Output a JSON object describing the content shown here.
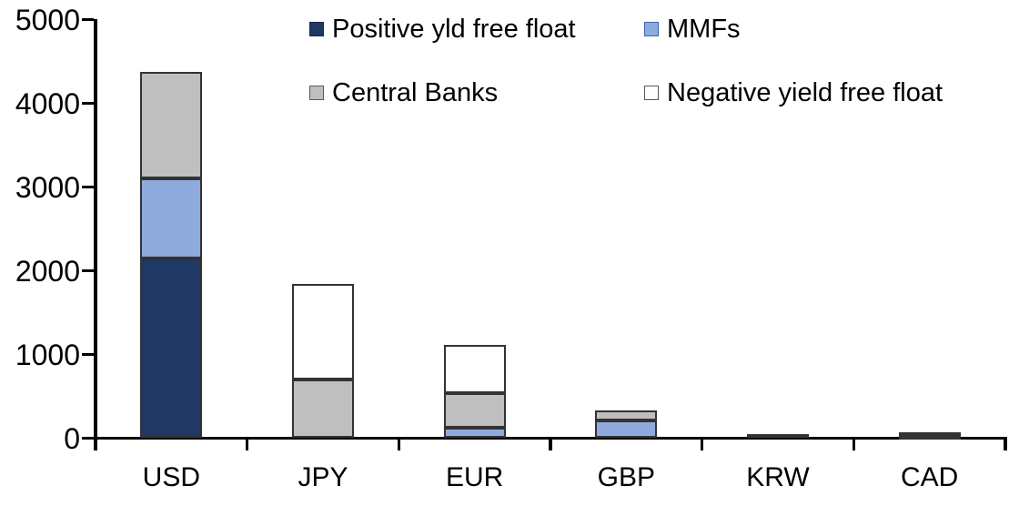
{
  "chart_data": {
    "type": "bar",
    "stacked": true,
    "title": "",
    "categories": [
      "USD",
      "JPY",
      "EUR",
      "GBP",
      "KRW",
      "CAD"
    ],
    "series": [
      {
        "name": "Positive yld free float",
        "color": "#1F3864",
        "swatch_border": "#17294F",
        "values": [
          2150,
          0,
          0,
          0,
          50,
          30
        ]
      },
      {
        "name": "MMFs",
        "color": "#8FAADC",
        "swatch_border": "#3A66A9",
        "values": [
          950,
          0,
          120,
          215,
          0,
          0
        ]
      },
      {
        "name": "Central Banks",
        "color": "#BFBFBF",
        "swatch_border": "#595959",
        "values": [
          1275,
          700,
          415,
          115,
          0,
          45
        ]
      },
      {
        "name": "Negative yield free float",
        "color": "#FFFFFF",
        "swatch_border": "#595959",
        "values": [
          0,
          1140,
          575,
          0,
          0,
          0
        ]
      }
    ],
    "xlabel": "",
    "ylabel": "",
    "ylim": [
      0,
      5000
    ],
    "yticks": [
      0,
      1000,
      2000,
      3000,
      4000,
      5000
    ],
    "ytick_labels": [
      "0",
      "1000",
      "2000",
      "3000",
      "4000",
      "5000"
    ],
    "legend_position": "top",
    "grid": false,
    "axis_color": "#000000",
    "segment_border_color": "#333333"
  }
}
